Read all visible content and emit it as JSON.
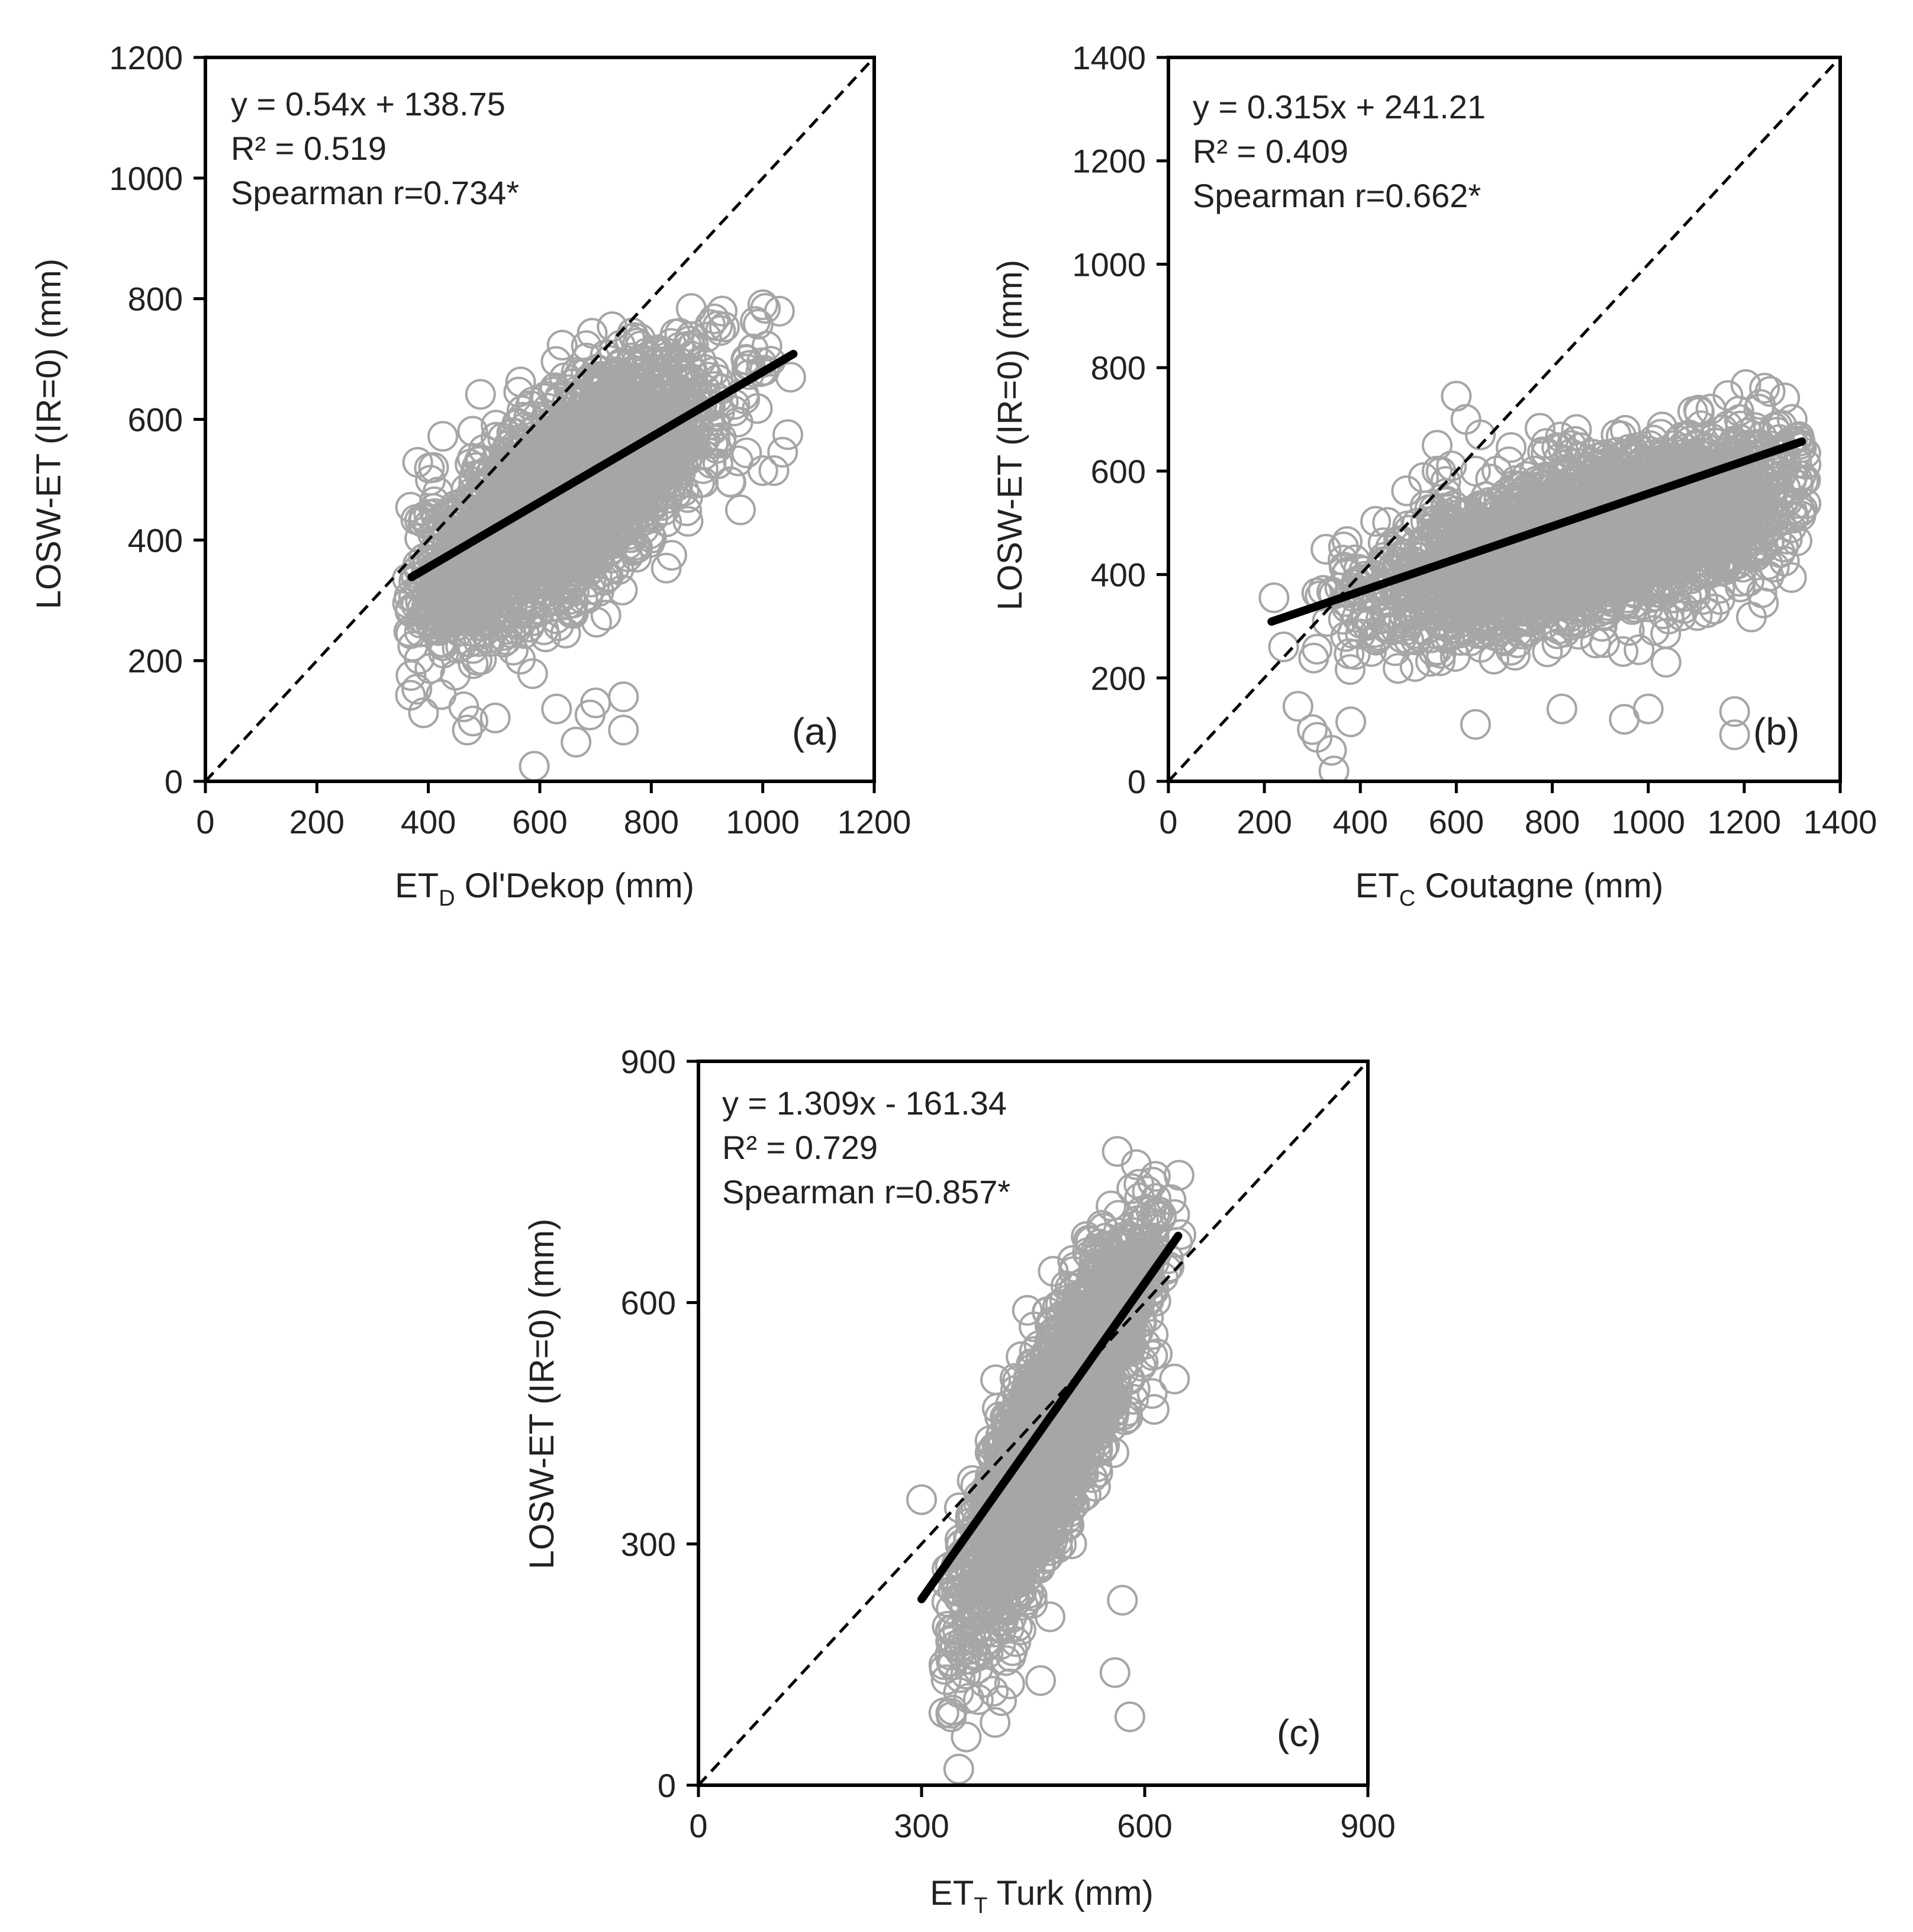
{
  "chart_data": [
    {
      "type": "scatter",
      "panel_label": "(a)",
      "xlabel": {
        "main": "ET",
        "sub": "D",
        "rest": " Ol'Dekop  (mm)"
      },
      "ylabel": "LOSW-ET (IR=0)  (mm)",
      "xlim": [
        0,
        1200
      ],
      "ylim": [
        0,
        1200
      ],
      "xticks": [
        0,
        200,
        400,
        600,
        800,
        1000,
        1200
      ],
      "yticks": [
        0,
        200,
        400,
        600,
        800,
        1000,
        1200
      ],
      "annotations": [
        "y = 0.54x  + 138.75",
        "R² = 0.519",
        "Spearman  r=0.734*"
      ],
      "regression": {
        "slope": 0.54,
        "intercept": 138.75,
        "x_range": [
          370,
          1055
        ]
      },
      "identity_line": true,
      "cloud": {
        "center": [
          640,
          470
        ],
        "spread": [
          135,
          115
        ],
        "correlation": 0.72,
        "n": 2600,
        "x_range": [
          360,
          1060
        ],
        "y_range": [
          20,
          790
        ]
      },
      "points": [
        {
          "x": 470,
          "y": 85
        },
        {
          "x": 480,
          "y": 100
        },
        {
          "x": 520,
          "y": 105
        },
        {
          "x": 590,
          "y": 25
        },
        {
          "x": 665,
          "y": 65
        },
        {
          "x": 630,
          "y": 120
        },
        {
          "x": 690,
          "y": 110
        },
        {
          "x": 750,
          "y": 85
        },
        {
          "x": 750,
          "y": 140
        },
        {
          "x": 700,
          "y": 130
        },
        {
          "x": 960,
          "y": 450
        },
        {
          "x": 1000,
          "y": 515
        },
        {
          "x": 1020,
          "y": 515
        },
        {
          "x": 1050,
          "y": 670
        },
        {
          "x": 400,
          "y": 425
        },
        {
          "x": 1000,
          "y": 790
        }
      ],
      "colors": {
        "points": "#a6a6a6",
        "regression": "#000000",
        "identity": "#000000"
      }
    },
    {
      "type": "scatter",
      "panel_label": "(b)",
      "xlabel": {
        "main": "ET",
        "sub": "C",
        "rest": " Coutagne  (mm)"
      },
      "ylabel": "LOSW-ET (IR=0)  (mm)",
      "xlim": [
        0,
        1400
      ],
      "ylim": [
        0,
        1400
      ],
      "xticks": [
        0,
        200,
        400,
        600,
        800,
        1000,
        1200,
        1400
      ],
      "yticks": [
        0,
        200,
        400,
        600,
        800,
        1000,
        1200,
        1400
      ],
      "annotations": [
        "y = 0.315x  + 241.21",
        "R² = 0.409",
        "Spearman  r=0.662*"
      ],
      "regression": {
        "slope": 0.315,
        "intercept": 241.21,
        "x_range": [
          215,
          1320
        ]
      },
      "identity_line": true,
      "cloud": {
        "center": [
          880,
          470
        ],
        "spread": [
          230,
          95
        ],
        "correlation": 0.6,
        "n": 2600,
        "x_range": [
          300,
          1330
        ],
        "y_range": [
          200,
          790
        ]
      },
      "points": [
        {
          "x": 220,
          "y": 355
        },
        {
          "x": 240,
          "y": 260
        },
        {
          "x": 270,
          "y": 145
        },
        {
          "x": 300,
          "y": 100
        },
        {
          "x": 310,
          "y": 85
        },
        {
          "x": 340,
          "y": 60
        },
        {
          "x": 345,
          "y": 20
        },
        {
          "x": 380,
          "y": 115
        },
        {
          "x": 600,
          "y": 745
        },
        {
          "x": 620,
          "y": 700
        },
        {
          "x": 650,
          "y": 670
        },
        {
          "x": 560,
          "y": 650
        },
        {
          "x": 640,
          "y": 600
        },
        {
          "x": 590,
          "y": 610
        },
        {
          "x": 1180,
          "y": 135
        },
        {
          "x": 1180,
          "y": 90
        },
        {
          "x": 1240,
          "y": 345
        },
        {
          "x": 640,
          "y": 110
        },
        {
          "x": 820,
          "y": 140
        },
        {
          "x": 1000,
          "y": 140
        },
        {
          "x": 950,
          "y": 120
        },
        {
          "x": 1310,
          "y": 465
        },
        {
          "x": 1300,
          "y": 700
        },
        {
          "x": 560,
          "y": 600
        }
      ],
      "colors": {
        "points": "#a6a6a6",
        "regression": "#000000",
        "identity": "#000000"
      }
    },
    {
      "type": "scatter",
      "panel_label": "(c)",
      "xlabel": {
        "main": "ET",
        "sub": "T",
        "rest": " Turk (mm)"
      },
      "ylabel": "LOSW-ET (IR=0) (mm)",
      "xlim": [
        0,
        900
      ],
      "ylim": [
        0,
        900
      ],
      "xticks": [
        0,
        300,
        600,
        900
      ],
      "yticks": [
        0,
        300,
        600,
        900
      ],
      "annotations": [
        "y = 1.309x  - 161.34",
        "R² = 0.729",
        "Spearman  r=0.857*"
      ],
      "regression": {
        "slope": 1.309,
        "intercept": -161.34,
        "x_range": [
          300,
          645
        ]
      },
      "identity_line": true,
      "cloud": {
        "center": [
          480,
          440
        ],
        "spread": [
          60,
          120
        ],
        "correlation": 0.85,
        "n": 2600,
        "x_range": [
          330,
          650
        ],
        "y_range": [
          20,
          790
        ]
      },
      "points": [
        {
          "x": 300,
          "y": 355
        },
        {
          "x": 350,
          "y": 20
        },
        {
          "x": 330,
          "y": 90
        },
        {
          "x": 340,
          "y": 85
        },
        {
          "x": 360,
          "y": 60
        },
        {
          "x": 330,
          "y": 150
        },
        {
          "x": 560,
          "y": 140
        },
        {
          "x": 580,
          "y": 85
        },
        {
          "x": 640,
          "y": 505
        },
        {
          "x": 570,
          "y": 230
        },
        {
          "x": 460,
          "y": 130
        },
        {
          "x": 420,
          "y": 160
        }
      ],
      "colors": {
        "points": "#a6a6a6",
        "regression": "#000000",
        "identity": "#000000"
      }
    }
  ]
}
